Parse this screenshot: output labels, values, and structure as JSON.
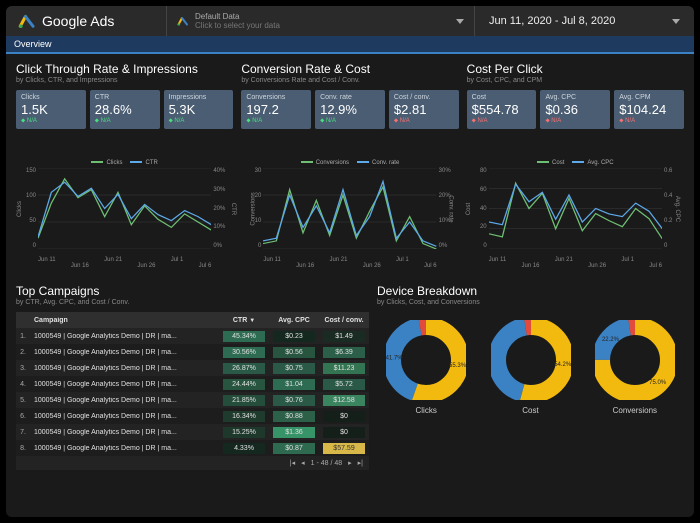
{
  "colors": {
    "bg": "#1a1a1a",
    "card": "#4a5d72",
    "topbar": "#2a2a2a",
    "tab": "#1f3a5f",
    "line_a": "#6fbf73",
    "line_b": "#5da9e9",
    "grid": "#3a3a3a",
    "donut_blue": "#3b82c4",
    "donut_yellow": "#f2b90f",
    "donut_red": "#e24a3b",
    "heat_ctr": [
      "#2d6b52",
      "#2d6b52",
      "#2a5a47",
      "#27553f",
      "#254d3b",
      "#1f3b2e",
      "#1e382c",
      "#152820"
    ],
    "heat_cpc": [
      "#152820",
      "#27553f",
      "#2a5a47",
      "#2d6b52",
      "#2a5a47",
      "#2c6048",
      "#379468",
      "#2e6a50"
    ],
    "heat_cost": [
      "#192b22",
      "#2b5f49",
      "#337552",
      "#2a5a47",
      "#3a8560",
      "#141f1a",
      "#141f1a",
      "#d9b84a"
    ]
  },
  "header": {
    "brand": "Google Ads",
    "selector_line1": "Default Data",
    "selector_line2": "Click to select your data",
    "date_range": "Jun 11, 2020 - Jul 8, 2020",
    "tab": "Overview"
  },
  "panels": [
    {
      "title": "Click Through Rate & Impressions",
      "sub": "by Clicks, CTR, and Impressions",
      "cards": [
        {
          "label": "Clicks",
          "val": "1.5K",
          "delta": "N/A",
          "dc": "green"
        },
        {
          "label": "CTR",
          "val": "28.6%",
          "delta": "N/A",
          "dc": "green"
        },
        {
          "label": "Impressions",
          "val": "5.3K",
          "delta": "N/A",
          "dc": "green"
        }
      ],
      "legend": [
        "Clicks",
        "CTR"
      ],
      "yl": [
        "150",
        "100",
        "50",
        "0"
      ],
      "yr": [
        "40%",
        "30%",
        "20%",
        "10%",
        "0%"
      ],
      "yl_title": "Clicks",
      "yr_title": "CTR",
      "x": [
        "Jun 11",
        "Jun 16",
        "Jun 21",
        "Jun 26",
        "Jul 1",
        "Jul 6"
      ],
      "series_a": [
        20,
        85,
        130,
        95,
        110,
        60,
        105,
        45,
        80,
        55,
        40,
        65,
        50,
        35
      ],
      "series_b": [
        6,
        28,
        33,
        26,
        30,
        20,
        27,
        15,
        22,
        17,
        14,
        19,
        16,
        12
      ],
      "a_max": 150,
      "b_max": 40
    },
    {
      "title": "Conversion Rate & Cost",
      "sub": "by Conversions Rate and Cost / Conv.",
      "cards": [
        {
          "label": "Conversions",
          "val": "197.2",
          "delta": "N/A",
          "dc": "green"
        },
        {
          "label": "Conv. rate",
          "val": "12.9%",
          "delta": "N/A",
          "dc": "green"
        },
        {
          "label": "Cost / conv.",
          "val": "$2.81",
          "delta": "N/A",
          "dc": "red"
        }
      ],
      "legend": [
        "Conversions",
        "Conv. rate"
      ],
      "yl": [
        "30",
        "20",
        "10",
        "0"
      ],
      "yr": [
        "30%",
        "20%",
        "10%",
        "0%"
      ],
      "yl_title": "Conversions",
      "yr_title": "Conv. rate",
      "x": [
        "Jun 11",
        "Jun 16",
        "Jun 21",
        "Jun 26",
        "Jul 1",
        "Jul 6"
      ],
      "series_a": [
        2,
        3,
        22,
        6,
        18,
        5,
        20,
        4,
        14,
        23,
        3,
        12,
        2,
        0
      ],
      "series_b": [
        3,
        4,
        20,
        8,
        16,
        6,
        22,
        5,
        12,
        25,
        4,
        10,
        3,
        1
      ],
      "a_max": 30,
      "b_max": 30
    },
    {
      "title": "Cost Per Click",
      "sub": "by Cost, CPC, and CPM",
      "cards": [
        {
          "label": "Cost",
          "val": "$554.78",
          "delta": "N/A",
          "dc": "red"
        },
        {
          "label": "Avg. CPC",
          "val": "$0.36",
          "delta": "N/A",
          "dc": "red"
        },
        {
          "label": "Avg. CPM",
          "val": "$104.24",
          "delta": "N/A",
          "dc": "red"
        }
      ],
      "legend": [
        "Cost",
        "Avg. CPC"
      ],
      "yl": [
        "80",
        "60",
        "40",
        "20",
        "0"
      ],
      "yr": [
        "0.6",
        "0.4",
        "0.2",
        "0"
      ],
      "yl_title": "Cost",
      "yr_title": "Avg. CPC",
      "x": [
        "Jun 11",
        "Jun 16",
        "Jun 21",
        "Jun 26",
        "Jul 1",
        "Jul 6"
      ],
      "series_a": [
        15,
        12,
        65,
        40,
        55,
        20,
        50,
        18,
        35,
        28,
        22,
        40,
        30,
        10
      ],
      "series_b": [
        0.2,
        0.18,
        0.48,
        0.35,
        0.42,
        0.22,
        0.4,
        0.2,
        0.3,
        0.26,
        0.24,
        0.34,
        0.28,
        0.15
      ],
      "a_max": 80,
      "b_max": 0.6
    }
  ],
  "campaigns": {
    "title": "Top Campaigns",
    "sub": "by CTR, Avg. CPC, and Cost / Conv.",
    "cols": [
      "Campaign",
      "CTR",
      "Avg. CPC",
      "Cost / conv."
    ],
    "rows": [
      {
        "i": "1.",
        "name": "1000549 | Google Analytics Demo | DR | ma...",
        "ctr": "45.34%",
        "cpc": "$0.23",
        "cost": "$1.49"
      },
      {
        "i": "2.",
        "name": "1000549 | Google Analytics Demo | DR | ma...",
        "ctr": "30.56%",
        "cpc": "$0.56",
        "cost": "$6.39"
      },
      {
        "i": "3.",
        "name": "1000549 | Google Analytics Demo | DR | ma...",
        "ctr": "26.87%",
        "cpc": "$0.75",
        "cost": "$11.23"
      },
      {
        "i": "4.",
        "name": "1000549 | Google Analytics Demo | DR | ma...",
        "ctr": "24.44%",
        "cpc": "$1.04",
        "cost": "$5.72"
      },
      {
        "i": "5.",
        "name": "1000549 | Google Analytics Demo | DR | ma...",
        "ctr": "21.85%",
        "cpc": "$0.76",
        "cost": "$12.58"
      },
      {
        "i": "6.",
        "name": "1000549 | Google Analytics Demo | DR | ma...",
        "ctr": "16.34%",
        "cpc": "$0.88",
        "cost": "$0"
      },
      {
        "i": "7.",
        "name": "1000549 | Google Analytics Demo | DR | ma...",
        "ctr": "15.25%",
        "cpc": "$1.36",
        "cost": "$0"
      },
      {
        "i": "8.",
        "name": "1000549 | Google Analytics Demo | DR | ma...",
        "ctr": "4.33%",
        "cpc": "$0.87",
        "cost": "$57.59"
      }
    ],
    "pager": "1 - 48 / 48"
  },
  "devices": {
    "title": "Device Breakdown",
    "sub": "by Clicks, Cost, and Conversions",
    "items": [
      {
        "label": "Clicks",
        "slices": [
          {
            "pct": 55.3,
            "c": "donut_yellow",
            "txt": "55.3%"
          },
          {
            "pct": 41.7,
            "c": "donut_blue",
            "txt": "41.7%"
          },
          {
            "pct": 3.0,
            "c": "donut_red",
            "txt": ""
          }
        ]
      },
      {
        "label": "Cost",
        "slices": [
          {
            "pct": 54.2,
            "c": "donut_yellow",
            "txt": "54.2%"
          },
          {
            "pct": 43.0,
            "c": "donut_blue",
            "txt": ""
          },
          {
            "pct": 2.8,
            "c": "donut_red",
            "txt": ""
          }
        ]
      },
      {
        "label": "Conversions",
        "slices": [
          {
            "pct": 75.0,
            "c": "donut_yellow",
            "txt": "75.0%"
          },
          {
            "pct": 22.2,
            "c": "donut_blue",
            "txt": "22.2%"
          },
          {
            "pct": 2.8,
            "c": "donut_red",
            "txt": ""
          }
        ]
      }
    ]
  }
}
